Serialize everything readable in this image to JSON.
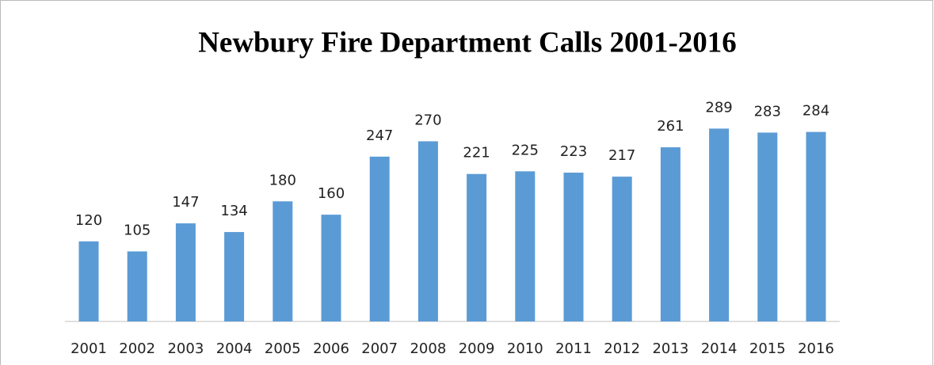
{
  "chart_data": {
    "type": "bar",
    "title": "Newbury Fire Department Calls 2001-2016",
    "categories": [
      "2001",
      "2002",
      "2003",
      "2004",
      "2005",
      "2006",
      "2007",
      "2008",
      "2009",
      "2010",
      "2011",
      "2012",
      "2013",
      "2014",
      "2015",
      "2016"
    ],
    "values": [
      120,
      105,
      147,
      134,
      180,
      160,
      247,
      270,
      221,
      225,
      223,
      217,
      261,
      289,
      283,
      284
    ],
    "color": "#5b9bd5",
    "ylim": [
      0,
      350
    ]
  }
}
